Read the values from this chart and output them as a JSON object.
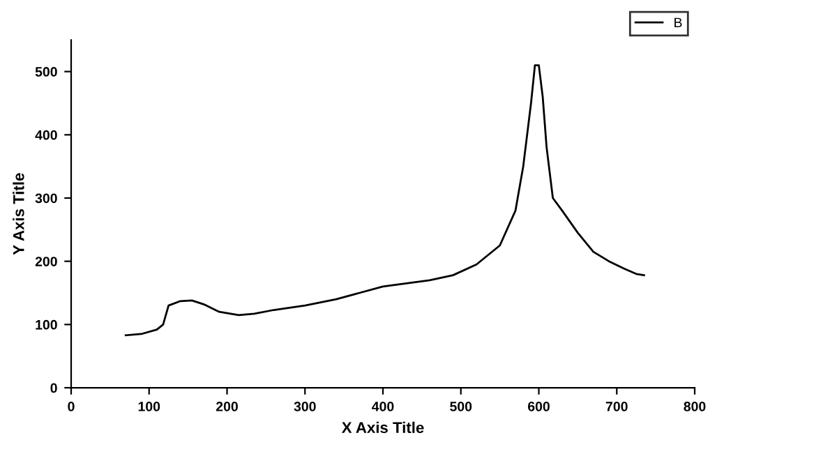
{
  "chart_data": {
    "type": "line",
    "xlabel": "X Axis Title",
    "ylabel": "Y Axis Title",
    "xlim": [
      0,
      800
    ],
    "xticks": [
      0,
      100,
      200,
      300,
      400,
      500,
      600,
      700,
      800
    ],
    "ylim": [
      0,
      550
    ],
    "yticks": [
      0,
      100,
      200,
      300,
      400,
      500
    ],
    "legend": "top right",
    "grid": false,
    "series": [
      {
        "name": "B",
        "color": "#000000",
        "x": [
          70,
          90,
          110,
          118,
          125,
          140,
          155,
          170,
          190,
          215,
          235,
          260,
          300,
          340,
          370,
          400,
          430,
          460,
          490,
          520,
          550,
          570,
          580,
          590,
          595,
          600,
          605,
          610,
          618,
          630,
          650,
          670,
          690,
          710,
          725,
          735
        ],
        "values": [
          83,
          85,
          92,
          100,
          130,
          137,
          138,
          132,
          120,
          115,
          117,
          123,
          130,
          140,
          150,
          160,
          165,
          170,
          178,
          195,
          225,
          280,
          350,
          450,
          510,
          510,
          460,
          380,
          300,
          280,
          245,
          215,
          200,
          188,
          180,
          178
        ]
      }
    ]
  }
}
